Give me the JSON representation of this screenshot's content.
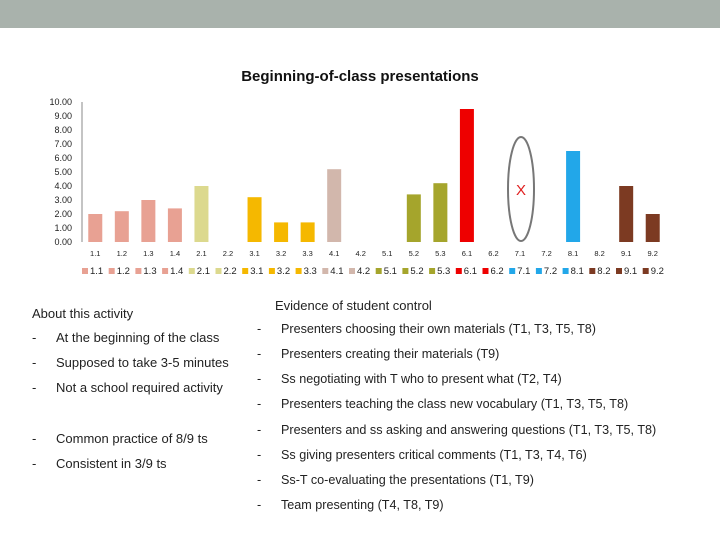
{
  "chart_data": {
    "type": "bar",
    "title": "Beginning-of-class presentations",
    "categories": [
      "1.1",
      "1.2",
      "1.3",
      "1.4",
      "2.1",
      "2.2",
      "3.1",
      "3.2",
      "3.3",
      "4.1",
      "4.2",
      "5.1",
      "5.2",
      "5.3",
      "6.1",
      "6.2",
      "7.1",
      "7.2",
      "8.1",
      "8.2",
      "9.1",
      "9.2"
    ],
    "values": [
      2.0,
      2.2,
      3.0,
      2.4,
      4.0,
      0,
      3.2,
      1.4,
      1.4,
      5.2,
      0,
      0,
      3.4,
      4.2,
      9.5,
      0,
      0,
      0,
      6.5,
      0,
      4.0,
      2.0
    ],
    "colors": [
      "#e8a193",
      "#e8a193",
      "#e8a193",
      "#e8a193",
      "#dcd98e",
      "#dcd98e",
      "#f5b800",
      "#f5b800",
      "#f5b800",
      "#d2b7ac",
      "#d2b7ac",
      "#a5a52c",
      "#a5a52c",
      "#a5a52c",
      "#ee0000",
      "#ee0000",
      "#22a7e9",
      "#22a7e9",
      "#22a7e9",
      "#7c3a22",
      "#7c3a22",
      "#7c3a22"
    ],
    "yticks": [
      "0.00",
      "1.00",
      "2.00",
      "3.00",
      "4.00",
      "5.00",
      "6.00",
      "7.00",
      "8.00",
      "9.00",
      "10.00"
    ],
    "ylim": [
      0,
      10
    ],
    "legend_position": "bottom",
    "annotation": "X",
    "grid": false
  },
  "left_panel": {
    "title": "About this activity",
    "items": [
      {
        "dash": "-",
        "text": "At the beginning of the class"
      },
      {
        "dash": "-",
        "text": "Supposed to take 3-5 minutes"
      },
      {
        "dash": "-",
        "text": "Not a school required activity"
      },
      {
        "dash": "-",
        "text": "Common practice of 8/9 ts"
      },
      {
        "dash": "-",
        "text": "Consistent in 3/9 ts"
      }
    ]
  },
  "right_panel": {
    "title": "Evidence of student control",
    "items": [
      {
        "dash": "-",
        "text": "Presenters choosing their own materials (T1, T3, T5, T8)"
      },
      {
        "dash": "-",
        "text": "Presenters creating their materials (T9)"
      },
      {
        "dash": "-",
        "text": "Ss negotiating with T who to present what (T2, T4)"
      },
      {
        "dash": "-",
        "text": "Presenters teaching the class new vocabulary (T1, T3, T5, T8)"
      },
      {
        "dash": "-",
        "text": "Presenters and ss asking and answering questions (T1, T3, T5, T8)"
      },
      {
        "dash": "-",
        "text": "Ss giving presenters critical comments (T1, T3, T4, T6)"
      },
      {
        "dash": "-",
        "text": "Ss-T co-evaluating the presentations (T1, T9)"
      },
      {
        "dash": "-",
        "text": "Team presenting (T4, T8, T9)"
      }
    ]
  }
}
